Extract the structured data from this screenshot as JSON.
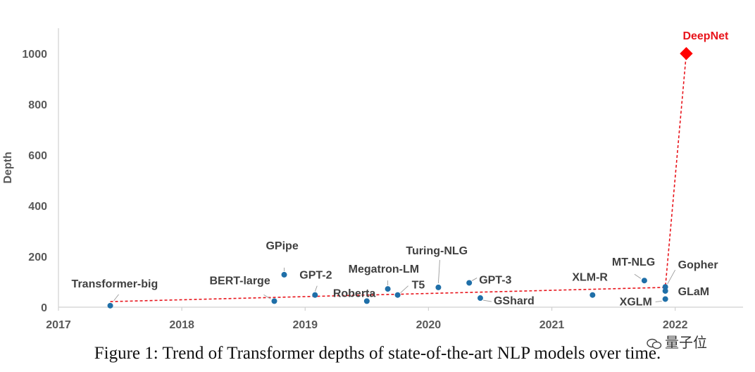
{
  "chart_data": {
    "type": "scatter",
    "title": "",
    "xlabel": "",
    "ylabel": "Depth",
    "xlim": [
      2017,
      2022.55
    ],
    "ylim": [
      0,
      1100
    ],
    "x_ticks": [
      "2017",
      "2018",
      "2019",
      "2020",
      "2021",
      "2022"
    ],
    "y_ticks": [
      "0",
      "200",
      "400",
      "600",
      "800",
      "1000"
    ],
    "grid": false,
    "colors": {
      "point": "#1f6fa8",
      "highlight": "#ff0000",
      "trend": "#e8141b",
      "axis": "#d0d0d0"
    },
    "points": [
      {
        "name": "Transformer-big",
        "x": 2017.42,
        "y": 6
      },
      {
        "name": "BERT-large",
        "x": 2018.75,
        "y": 24
      },
      {
        "name": "GPipe",
        "x": 2018.83,
        "y": 128
      },
      {
        "name": "GPT-2",
        "x": 2019.08,
        "y": 48
      },
      {
        "name": "Roberta",
        "x": 2019.5,
        "y": 24
      },
      {
        "name": "Megatron-LM",
        "x": 2019.67,
        "y": 72
      },
      {
        "name": "T5",
        "x": 2019.75,
        "y": 48
      },
      {
        "name": "Turing-NLG",
        "x": 2020.08,
        "y": 78
      },
      {
        "name": "GPT-3",
        "x": 2020.33,
        "y": 96
      },
      {
        "name": "GShard",
        "x": 2020.42,
        "y": 36
      },
      {
        "name": "XLM-R",
        "x": 2021.33,
        "y": 48
      },
      {
        "name": "MT-NLG",
        "x": 2021.75,
        "y": 105
      },
      {
        "name": "Gopher",
        "x": 2021.92,
        "y": 80
      },
      {
        "name": "GLaM",
        "x": 2021.92,
        "y": 64
      },
      {
        "name": "XGLM",
        "x": 2021.92,
        "y": 32
      },
      {
        "name": "DeepNet",
        "x": 2022.09,
        "y": 1000,
        "highlight": true
      }
    ],
    "trendline": [
      [
        2017.42,
        22
      ],
      [
        2021.92,
        78
      ],
      [
        2022.09,
        1000
      ]
    ]
  },
  "caption": "Figure 1: Trend of Transformer depths of state-of-the-art NLP models over time.",
  "watermark": "量子位"
}
